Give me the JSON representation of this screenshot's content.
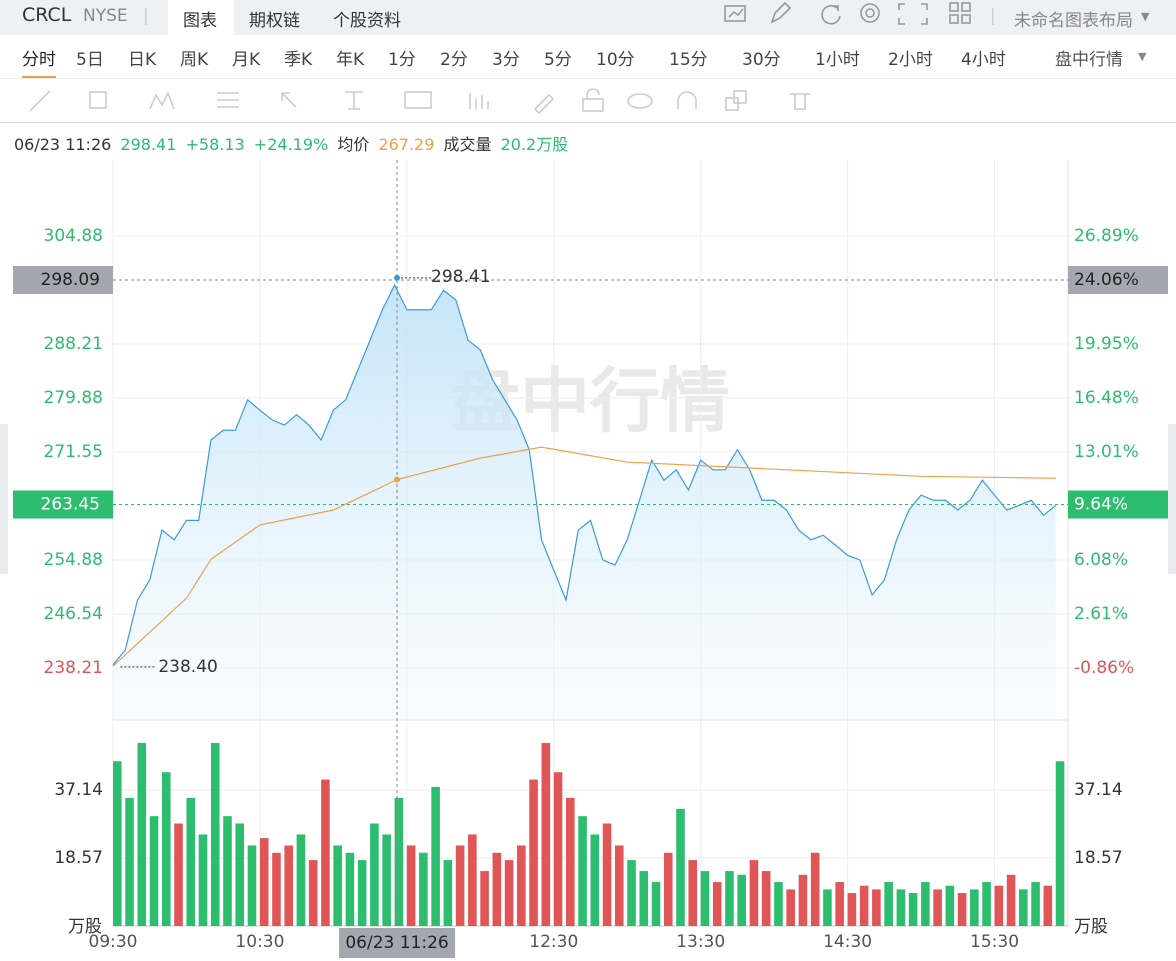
{
  "header": {
    "symbol": "CRCL",
    "exchange": "NYSE",
    "tabs": [
      "图表",
      "期权链",
      "个股资料"
    ],
    "layout_menu": "未命名图表布局"
  },
  "periods": {
    "items": [
      "分时",
      "5日",
      "日K",
      "周K",
      "月K",
      "季K",
      "年K",
      "1分",
      "2分",
      "3分",
      "5分",
      "10分",
      "15分",
      "30分",
      "1小时",
      "2小时",
      "4小时"
    ],
    "mode": "盘中行情"
  },
  "info": {
    "time": "06/23 11:26",
    "price": "298.41",
    "change": "+58.13",
    "change_pct": "+24.19%",
    "avg_label": "均价",
    "avg": "267.29",
    "volume_label": "成交量",
    "volume": "20.2万股"
  },
  "chart_data": {
    "type": "line",
    "watermark": "盘中行情",
    "x": [
      "09:30",
      "09:35",
      "09:40",
      "09:45",
      "09:50",
      "09:55",
      "10:00",
      "10:05",
      "10:10",
      "10:15",
      "10:20",
      "10:25",
      "10:30",
      "10:35",
      "10:40",
      "10:45",
      "10:50",
      "10:55",
      "11:00",
      "11:05",
      "11:10",
      "11:15",
      "11:20",
      "11:25",
      "11:30",
      "11:35",
      "11:40",
      "11:45",
      "11:50",
      "11:55",
      "12:00",
      "12:05",
      "12:10",
      "12:15",
      "12:20",
      "12:25",
      "12:30",
      "12:35",
      "12:40",
      "12:45",
      "12:50",
      "12:55",
      "13:00",
      "13:05",
      "13:10",
      "13:15",
      "13:20",
      "13:25",
      "13:30",
      "13:35",
      "13:40",
      "13:45",
      "13:50",
      "13:55",
      "14:00",
      "14:05",
      "14:10",
      "14:15",
      "14:20",
      "14:25",
      "14:30",
      "14:35",
      "14:40",
      "14:45",
      "14:50",
      "14:55",
      "15:00",
      "15:05",
      "15:10",
      "15:15",
      "15:20",
      "15:25",
      "15:30",
      "15:35",
      "15:40",
      "15:45",
      "15:50",
      "15:55"
    ],
    "xlim": [
      "09:30",
      "16:00"
    ],
    "xticks": [
      "09:30",
      "10:30",
      "11:30",
      "12:30",
      "13:30",
      "14:30",
      "15:30"
    ],
    "series": [
      {
        "color": "#3b9be0",
        "values": [
          238.7,
          241.0,
          248.7,
          251.8,
          259.5,
          258.0,
          261.0,
          261.0,
          273.4,
          274.9,
          274.9,
          279.6,
          278.0,
          276.5,
          275.7,
          277.3,
          275.7,
          273.4,
          278.0,
          279.6,
          284.2,
          288.8,
          293.5,
          297.3,
          293.5,
          293.5,
          293.5,
          296.5,
          295.0,
          288.8,
          287.3,
          282.7,
          279.6,
          276.5,
          271.9,
          258.0,
          253.3,
          248.7,
          259.5,
          261.0,
          254.9,
          254.1,
          258.0,
          264.1,
          270.3,
          267.2,
          268.8,
          265.7,
          270.3,
          268.8,
          268.8,
          271.9,
          268.8,
          264.1,
          264.1,
          262.6,
          259.5,
          258.0,
          258.7,
          257.2,
          255.6,
          254.9,
          249.5,
          251.8,
          258.0,
          262.6,
          264.9,
          264.1,
          264.1,
          262.6,
          264.1,
          267.2,
          264.9,
          262.6,
          263.3,
          264.1,
          261.8,
          263.3
        ]
      },
      {
        "color": "#f0a04b",
        "x": [
          "09:30",
          "09:40",
          "10:00",
          "10:10",
          "10:30",
          "11:00",
          "11:26",
          "12:00",
          "12:25",
          "13:00",
          "14:00",
          "15:00",
          "15:55"
        ],
        "values": [
          238.5,
          242,
          249,
          255,
          260.3,
          262.6,
          267.29,
          270.6,
          272.3,
          270.0,
          268.9,
          267.8,
          267.5
        ]
      }
    ],
    "ylim": [
      230.2,
      316.6
    ],
    "yticks": [
      238.21,
      246.54,
      254.88,
      271.55,
      279.88,
      288.21,
      304.88
    ],
    "y2lim": [
      -4.2,
      31.77
    ],
    "y2ticks": [
      {
        "value": -0.86,
        "label": "-0.86%"
      },
      {
        "value": 2.61,
        "label": "2.61%"
      },
      {
        "value": 6.08,
        "label": "6.08%"
      },
      {
        "value": 13.01,
        "label": "13.01%"
      },
      {
        "value": 16.48,
        "label": "16.48%"
      },
      {
        "value": 19.95,
        "label": "19.95%"
      },
      {
        "value": 26.89,
        "label": "26.89%"
      }
    ],
    "up_color": "#2dbd6e",
    "down_color": "#e05555",
    "grid": true,
    "high": {
      "x": "11:26",
      "value": 298.41
    },
    "low": {
      "x": "09:33",
      "value": {
        "value": 238.4,
        "label": "238.40"
      }
    },
    "last": {
      "value": 263.45,
      "y2": {
        "value": 9.64,
        "label": "9.64%"
      }
    },
    "crosshair": {
      "x": "11:26",
      "x_label": "06/23 11:26",
      "value": 298.09,
      "y2": {
        "value": 24.06,
        "label": "24.06%"
      }
    },
    "volume": {
      "unit": "万股",
      "ylim": [
        0,
        54.9
      ],
      "yticks": [
        18.57,
        37.14
      ],
      "values": [
        45,
        35,
        50,
        30,
        42,
        28,
        35,
        25,
        50,
        30,
        28,
        22,
        24,
        20,
        22,
        25,
        18,
        40,
        22,
        20,
        18,
        28,
        25,
        35,
        22,
        20,
        38,
        18,
        22,
        25,
        15,
        20,
        18,
        22,
        40,
        50,
        42,
        35,
        30,
        25,
        28,
        22,
        18,
        15,
        12,
        20,
        32,
        18,
        15,
        12,
        15,
        14,
        18,
        15,
        12,
        10,
        14,
        20,
        10,
        12,
        9,
        11,
        10,
        12,
        10,
        9,
        12,
        10,
        11,
        9,
        10,
        12,
        11,
        14,
        10,
        12,
        11,
        45
      ]
    }
  }
}
